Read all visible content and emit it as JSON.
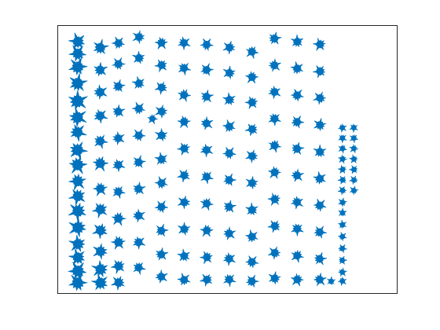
{
  "window": {
    "title": ""
  },
  "chart_data": {
    "type": "scatter",
    "title": "",
    "xlabel": "",
    "ylabel": "",
    "ticks_visible": false,
    "box": true,
    "grid": false,
    "legend": "none",
    "xlim": [
      0,
      15
    ],
    "ylim": [
      0,
      18
    ],
    "marker": "glyph-tree",
    "colors": {
      "marker": "#0072BD",
      "axes": "#262626",
      "background": "#ffffff"
    },
    "series": [
      {
        "values": [
          {
            "x": 0.9,
            "y": 16.9,
            "s": 12
          },
          {
            "x": 0.9,
            "y": 16.1,
            "s": 12
          },
          {
            "x": 0.9,
            "y": 15.2,
            "s": 13
          },
          {
            "x": 0.9,
            "y": 14.1,
            "s": 13
          },
          {
            "x": 0.9,
            "y": 12.9,
            "s": 14
          },
          {
            "x": 0.9,
            "y": 11.8,
            "s": 13
          },
          {
            "x": 0.9,
            "y": 10.8,
            "s": 12
          },
          {
            "x": 0.9,
            "y": 9.6,
            "s": 13
          },
          {
            "x": 0.9,
            "y": 8.6,
            "s": 13
          },
          {
            "x": 0.9,
            "y": 7.5,
            "s": 12
          },
          {
            "x": 0.9,
            "y": 6.5,
            "s": 12
          },
          {
            "x": 0.9,
            "y": 5.5,
            "s": 13
          },
          {
            "x": 0.9,
            "y": 4.4,
            "s": 13
          },
          {
            "x": 0.9,
            "y": 3.3,
            "s": 12
          },
          {
            "x": 0.9,
            "y": 2.4,
            "s": 12
          },
          {
            "x": 0.9,
            "y": 1.5,
            "s": 13
          },
          {
            "x": 0.9,
            "y": 0.7,
            "s": 13
          },
          {
            "x": 1.9,
            "y": 16.5,
            "s": 11
          },
          {
            "x": 1.9,
            "y": 15.0,
            "s": 10
          },
          {
            "x": 1.9,
            "y": 13.5,
            "s": 10
          },
          {
            "x": 1.9,
            "y": 11.9,
            "s": 10
          },
          {
            "x": 1.9,
            "y": 10.2,
            "s": 10
          },
          {
            "x": 1.9,
            "y": 8.7,
            "s": 11
          },
          {
            "x": 1.9,
            "y": 7.0,
            "s": 10
          },
          {
            "x": 1.9,
            "y": 5.6,
            "s": 11
          },
          {
            "x": 1.9,
            "y": 4.2,
            "s": 11
          },
          {
            "x": 1.9,
            "y": 2.8,
            "s": 11
          },
          {
            "x": 1.9,
            "y": 1.6,
            "s": 12
          },
          {
            "x": 1.9,
            "y": 0.7,
            "s": 12
          },
          {
            "x": 2.7,
            "y": 16.8,
            "s": 9
          },
          {
            "x": 2.7,
            "y": 15.4,
            "s": 9
          },
          {
            "x": 2.7,
            "y": 13.9,
            "s": 9
          },
          {
            "x": 2.7,
            "y": 12.2,
            "s": 9
          },
          {
            "x": 2.7,
            "y": 10.4,
            "s": 9
          },
          {
            "x": 2.7,
            "y": 8.6,
            "s": 9
          },
          {
            "x": 2.7,
            "y": 6.8,
            "s": 9
          },
          {
            "x": 2.7,
            "y": 5.0,
            "s": 10
          },
          {
            "x": 2.7,
            "y": 3.4,
            "s": 10
          },
          {
            "x": 2.7,
            "y": 1.8,
            "s": 10
          },
          {
            "x": 2.7,
            "y": 0.7,
            "s": 10
          },
          {
            "x": 3.6,
            "y": 17.2,
            "s": 9
          },
          {
            "x": 3.6,
            "y": 15.8,
            "s": 9
          },
          {
            "x": 3.6,
            "y": 14.1,
            "s": 9
          },
          {
            "x": 3.6,
            "y": 12.4,
            "s": 9
          },
          {
            "x": 3.6,
            "y": 10.6,
            "s": 9
          },
          {
            "x": 3.6,
            "y": 8.8,
            "s": 9
          },
          {
            "x": 3.6,
            "y": 7.0,
            "s": 9
          },
          {
            "x": 3.6,
            "y": 5.2,
            "s": 9
          },
          {
            "x": 3.6,
            "y": 3.4,
            "s": 9
          },
          {
            "x": 3.6,
            "y": 1.7,
            "s": 9
          },
          {
            "x": 4.2,
            "y": 11.7,
            "s": 7
          },
          {
            "x": 4.6,
            "y": 16.8,
            "s": 9
          },
          {
            "x": 4.6,
            "y": 15.3,
            "s": 9
          },
          {
            "x": 4.6,
            "y": 13.8,
            "s": 9
          },
          {
            "x": 4.6,
            "y": 12.2,
            "s": 9
          },
          {
            "x": 4.6,
            "y": 10.6,
            "s": 9
          },
          {
            "x": 4.6,
            "y": 9.0,
            "s": 9
          },
          {
            "x": 4.6,
            "y": 7.4,
            "s": 9
          },
          {
            "x": 4.6,
            "y": 5.8,
            "s": 9
          },
          {
            "x": 4.6,
            "y": 4.2,
            "s": 9
          },
          {
            "x": 4.6,
            "y": 2.6,
            "s": 9
          },
          {
            "x": 4.6,
            "y": 1.1,
            "s": 9
          },
          {
            "x": 5.6,
            "y": 16.8,
            "s": 9
          },
          {
            "x": 5.6,
            "y": 15.1,
            "s": 9
          },
          {
            "x": 5.6,
            "y": 13.3,
            "s": 9
          },
          {
            "x": 5.6,
            "y": 11.5,
            "s": 9
          },
          {
            "x": 5.6,
            "y": 9.7,
            "s": 9
          },
          {
            "x": 5.6,
            "y": 7.9,
            "s": 9
          },
          {
            "x": 5.6,
            "y": 6.1,
            "s": 9
          },
          {
            "x": 5.6,
            "y": 4.3,
            "s": 9
          },
          {
            "x": 5.6,
            "y": 2.5,
            "s": 9
          },
          {
            "x": 5.6,
            "y": 0.9,
            "s": 9
          },
          {
            "x": 6.6,
            "y": 16.7,
            "s": 9
          },
          {
            "x": 6.6,
            "y": 15.0,
            "s": 9
          },
          {
            "x": 6.6,
            "y": 13.2,
            "s": 9
          },
          {
            "x": 6.6,
            "y": 11.4,
            "s": 9
          },
          {
            "x": 6.6,
            "y": 9.6,
            "s": 9
          },
          {
            "x": 6.6,
            "y": 7.8,
            "s": 9
          },
          {
            "x": 6.6,
            "y": 6.0,
            "s": 9
          },
          {
            "x": 6.6,
            "y": 4.2,
            "s": 9
          },
          {
            "x": 6.6,
            "y": 2.4,
            "s": 9
          },
          {
            "x": 6.6,
            "y": 0.9,
            "s": 9
          },
          {
            "x": 7.6,
            "y": 16.5,
            "s": 9
          },
          {
            "x": 7.6,
            "y": 14.8,
            "s": 9
          },
          {
            "x": 7.6,
            "y": 13.0,
            "s": 9
          },
          {
            "x": 7.6,
            "y": 11.2,
            "s": 9
          },
          {
            "x": 7.6,
            "y": 9.4,
            "s": 9
          },
          {
            "x": 7.6,
            "y": 7.6,
            "s": 9
          },
          {
            "x": 7.6,
            "y": 5.8,
            "s": 9
          },
          {
            "x": 7.6,
            "y": 4.0,
            "s": 9
          },
          {
            "x": 7.6,
            "y": 2.3,
            "s": 9
          },
          {
            "x": 7.6,
            "y": 0.9,
            "s": 9
          },
          {
            "x": 8.6,
            "y": 16.2,
            "s": 9
          },
          {
            "x": 8.6,
            "y": 14.5,
            "s": 9
          },
          {
            "x": 8.6,
            "y": 12.8,
            "s": 9
          },
          {
            "x": 8.6,
            "y": 11.0,
            "s": 9
          },
          {
            "x": 8.6,
            "y": 9.2,
            "s": 9
          },
          {
            "x": 8.6,
            "y": 7.4,
            "s": 9
          },
          {
            "x": 8.6,
            "y": 5.6,
            "s": 9
          },
          {
            "x": 8.6,
            "y": 3.8,
            "s": 9
          },
          {
            "x": 8.6,
            "y": 2.1,
            "s": 9
          },
          {
            "x": 8.6,
            "y": 0.8,
            "s": 9
          },
          {
            "x": 9.6,
            "y": 17.1,
            "s": 9
          },
          {
            "x": 9.6,
            "y": 15.3,
            "s": 9
          },
          {
            "x": 9.6,
            "y": 13.5,
            "s": 9
          },
          {
            "x": 9.6,
            "y": 11.7,
            "s": 9
          },
          {
            "x": 9.6,
            "y": 9.9,
            "s": 9
          },
          {
            "x": 9.6,
            "y": 8.1,
            "s": 9
          },
          {
            "x": 9.6,
            "y": 6.3,
            "s": 9
          },
          {
            "x": 9.6,
            "y": 4.5,
            "s": 9
          },
          {
            "x": 9.6,
            "y": 2.7,
            "s": 9
          },
          {
            "x": 9.6,
            "y": 1.0,
            "s": 9
          },
          {
            "x": 10.6,
            "y": 16.9,
            "s": 9
          },
          {
            "x": 10.6,
            "y": 15.1,
            "s": 9
          },
          {
            "x": 10.6,
            "y": 13.3,
            "s": 9
          },
          {
            "x": 10.6,
            "y": 11.5,
            "s": 9
          },
          {
            "x": 10.6,
            "y": 9.7,
            "s": 9
          },
          {
            "x": 10.6,
            "y": 7.9,
            "s": 9
          },
          {
            "x": 10.6,
            "y": 6.1,
            "s": 9
          },
          {
            "x": 10.6,
            "y": 4.3,
            "s": 9
          },
          {
            "x": 10.6,
            "y": 2.5,
            "s": 9
          },
          {
            "x": 10.6,
            "y": 0.9,
            "s": 9
          },
          {
            "x": 11.6,
            "y": 16.7,
            "s": 9
          },
          {
            "x": 11.6,
            "y": 14.9,
            "s": 9
          },
          {
            "x": 11.6,
            "y": 13.1,
            "s": 9
          },
          {
            "x": 11.6,
            "y": 11.3,
            "s": 9
          },
          {
            "x": 11.6,
            "y": 9.5,
            "s": 9
          },
          {
            "x": 11.6,
            "y": 7.7,
            "s": 9
          },
          {
            "x": 11.6,
            "y": 5.9,
            "s": 9
          },
          {
            "x": 11.6,
            "y": 4.1,
            "s": 9
          },
          {
            "x": 11.6,
            "y": 2.3,
            "s": 9
          },
          {
            "x": 11.6,
            "y": 0.9,
            "s": 9
          },
          {
            "x": 12.6,
            "y": 11.1,
            "s": 6
          },
          {
            "x": 12.6,
            "y": 10.4,
            "s": 6
          },
          {
            "x": 12.6,
            "y": 9.7,
            "s": 6
          },
          {
            "x": 12.6,
            "y": 9.0,
            "s": 6
          },
          {
            "x": 12.6,
            "y": 8.3,
            "s": 6
          },
          {
            "x": 12.6,
            "y": 7.6,
            "s": 6
          },
          {
            "x": 12.6,
            "y": 6.9,
            "s": 6
          },
          {
            "x": 12.6,
            "y": 6.1,
            "s": 6
          },
          {
            "x": 12.6,
            "y": 5.4,
            "s": 6
          },
          {
            "x": 12.6,
            "y": 4.6,
            "s": 6
          },
          {
            "x": 12.6,
            "y": 3.8,
            "s": 6
          },
          {
            "x": 12.6,
            "y": 3.0,
            "s": 6
          },
          {
            "x": 12.6,
            "y": 2.2,
            "s": 6
          },
          {
            "x": 12.6,
            "y": 1.4,
            "s": 6
          },
          {
            "x": 12.6,
            "y": 0.8,
            "s": 6
          },
          {
            "x": 13.1,
            "y": 11.1,
            "s": 6
          },
          {
            "x": 13.1,
            "y": 10.4,
            "s": 6
          },
          {
            "x": 13.1,
            "y": 9.7,
            "s": 6
          },
          {
            "x": 13.1,
            "y": 9.0,
            "s": 6
          },
          {
            "x": 13.1,
            "y": 8.3,
            "s": 6
          },
          {
            "x": 13.1,
            "y": 7.6,
            "s": 6
          },
          {
            "x": 13.1,
            "y": 6.9,
            "s": 6
          },
          {
            "x": 12.1,
            "y": 0.8,
            "s": 6
          }
        ]
      }
    ]
  }
}
